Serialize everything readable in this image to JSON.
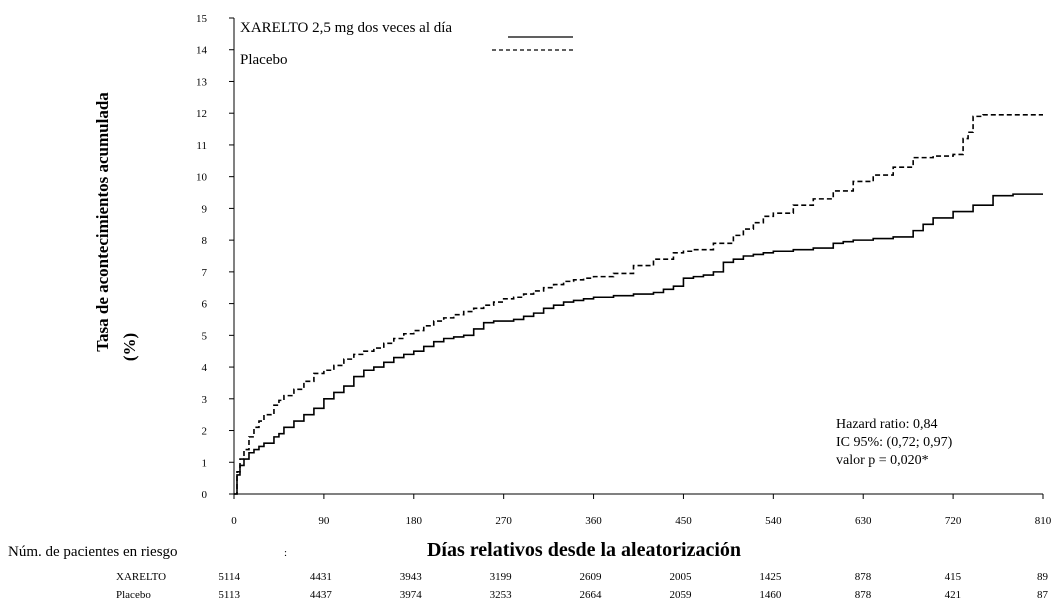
{
  "chart_data": {
    "type": "line",
    "ylabel_line1": "Tasa de acontecimientos acumulada",
    "ylabel_line2": "(%)",
    "xlabel": "Días relativos desde la aleatorización",
    "xlim": [
      0,
      810
    ],
    "ylim": [
      0,
      15
    ],
    "x_ticks": [
      "0",
      "90",
      "180",
      "270",
      "360",
      "450",
      "540",
      "630",
      "720",
      "810"
    ],
    "y_ticks": [
      "0",
      "1",
      "2",
      "3",
      "4",
      "5",
      "6",
      "7",
      "8",
      "9",
      "10",
      "11",
      "12",
      "13",
      "14",
      "15"
    ],
    "legend": {
      "placement": "top-left",
      "xarelto_label": "XARELTO 2,5 mg dos veces al día",
      "placebo_label": "Placebo"
    },
    "series": [
      {
        "name": "XARELTO 2,5 mg dos veces al día",
        "style": "solid",
        "color": "#000000",
        "x": [
          0,
          3,
          6,
          10,
          15,
          20,
          25,
          30,
          40,
          45,
          50,
          60,
          70,
          80,
          90,
          100,
          110,
          120,
          130,
          140,
          150,
          160,
          170,
          180,
          190,
          200,
          210,
          220,
          230,
          240,
          250,
          260,
          270,
          280,
          290,
          300,
          310,
          320,
          330,
          340,
          350,
          360,
          380,
          400,
          420,
          430,
          440,
          450,
          460,
          470,
          480,
          490,
          500,
          510,
          520,
          530,
          540,
          560,
          580,
          600,
          610,
          620,
          640,
          660,
          680,
          690,
          700,
          720,
          740,
          750,
          760,
          780,
          810
        ],
        "y": [
          0,
          0.6,
          0.9,
          1.1,
          1.3,
          1.4,
          1.5,
          1.6,
          1.8,
          1.9,
          2.1,
          2.3,
          2.5,
          2.7,
          3.0,
          3.2,
          3.4,
          3.7,
          3.9,
          4.0,
          4.15,
          4.3,
          4.4,
          4.5,
          4.65,
          4.8,
          4.9,
          4.95,
          5.0,
          5.2,
          5.4,
          5.45,
          5.45,
          5.5,
          5.6,
          5.7,
          5.85,
          5.95,
          6.05,
          6.1,
          6.15,
          6.2,
          6.25,
          6.3,
          6.35,
          6.45,
          6.55,
          6.8,
          6.85,
          6.9,
          7.0,
          7.3,
          7.4,
          7.5,
          7.55,
          7.6,
          7.65,
          7.7,
          7.75,
          7.9,
          7.95,
          8.0,
          8.05,
          8.1,
          8.3,
          8.5,
          8.7,
          8.9,
          9.1,
          9.1,
          9.4,
          9.45,
          9.45
        ]
      },
      {
        "name": "Placebo",
        "style": "dashed",
        "color": "#000000",
        "x": [
          0,
          3,
          6,
          10,
          15,
          20,
          25,
          30,
          40,
          45,
          50,
          60,
          70,
          80,
          90,
          100,
          110,
          120,
          130,
          140,
          150,
          160,
          170,
          180,
          190,
          200,
          210,
          220,
          230,
          240,
          250,
          260,
          270,
          280,
          290,
          300,
          310,
          320,
          330,
          340,
          350,
          360,
          380,
          400,
          420,
          440,
          450,
          460,
          480,
          500,
          510,
          520,
          530,
          540,
          560,
          580,
          600,
          620,
          640,
          660,
          680,
          700,
          720,
          730,
          735,
          740,
          750,
          760,
          780,
          810
        ],
        "y": [
          0,
          0.7,
          1.1,
          1.4,
          1.8,
          2.1,
          2.3,
          2.5,
          2.8,
          2.95,
          3.1,
          3.3,
          3.55,
          3.8,
          3.9,
          4.05,
          4.25,
          4.4,
          4.5,
          4.6,
          4.75,
          4.9,
          5.05,
          5.15,
          5.3,
          5.45,
          5.55,
          5.65,
          5.75,
          5.85,
          5.95,
          6.05,
          6.15,
          6.2,
          6.3,
          6.4,
          6.5,
          6.6,
          6.7,
          6.75,
          6.8,
          6.85,
          6.95,
          7.2,
          7.4,
          7.6,
          7.65,
          7.7,
          7.9,
          8.15,
          8.35,
          8.55,
          8.75,
          8.85,
          9.1,
          9.3,
          9.55,
          9.85,
          10.05,
          10.3,
          10.6,
          10.65,
          10.7,
          11.2,
          11.4,
          11.9,
          11.95,
          11.95,
          11.95,
          11.95
        ]
      }
    ],
    "stats": {
      "hazard_ratio": "Hazard ratio: 0,84",
      "ci": "IC 95%: (0,72; 0,97)",
      "p_value": "valor p = 0,020*"
    },
    "at_risk": {
      "title": "Núm. de pacientes en riesgo",
      "marker": ":",
      "rows": [
        {
          "label": "XARELTO",
          "values": [
            "5114",
            "4431",
            "3943",
            "3199",
            "2609",
            "2005",
            "1425",
            "878",
            "415",
            "89"
          ]
        },
        {
          "label": "Placebo",
          "values": [
            "5113",
            "4437",
            "3974",
            "3253",
            "2664",
            "2059",
            "1460",
            "878",
            "421",
            "87"
          ]
        }
      ]
    }
  }
}
